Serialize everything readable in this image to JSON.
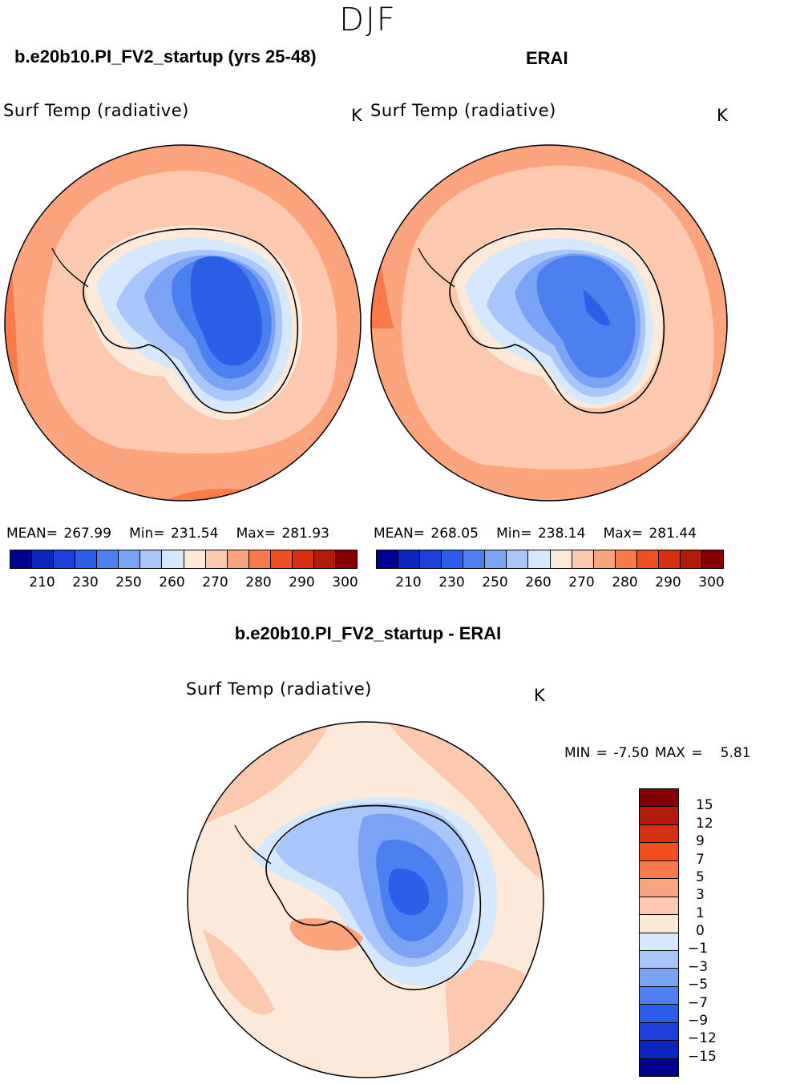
{
  "season": "DJF",
  "colors": {
    "abs_scale": [
      "#00008f",
      "#0c26bd",
      "#1c40d9",
      "#2d5fe6",
      "#4d7ff0",
      "#7aa2f5",
      "#a9c6fa",
      "#d6e8fb",
      "#fde9d9",
      "#fcc9ae",
      "#fca47d",
      "#fa7a4c",
      "#f0501f",
      "#d63212",
      "#b01c08",
      "#850000"
    ],
    "diff_scale": [
      "#850000",
      "#b01c08",
      "#d63212",
      "#f0501f",
      "#fa7a4c",
      "#fca47d",
      "#fcc9ae",
      "#fde9d9",
      "#d6e8fb",
      "#a9c6fa",
      "#7aa2f5",
      "#4d7ff0",
      "#2d5fe6",
      "#1c40d9",
      "#0c26bd",
      "#00008f"
    ]
  },
  "panels": [
    {
      "case_title": "b.e20b10.PI_FV2_startup (yrs 25-48)",
      "variable": "Surf Temp (radiative)",
      "units": "K",
      "mean_label": "MEAN=",
      "mean": "267.99",
      "min_label": "Min=",
      "min": "231.54",
      "max_label": "Max=",
      "max": "281.93",
      "ticks": [
        "210",
        "230",
        "250",
        "260",
        "270",
        "280",
        "290",
        "300"
      ]
    },
    {
      "case_title": "ERAI",
      "variable": "Surf Temp (radiative)",
      "units": "K",
      "mean_label": "MEAN=",
      "mean": "268.05",
      "min_label": "Min=",
      "min": "238.14",
      "max_label": "Max=",
      "max": "281.44",
      "ticks": [
        "210",
        "230",
        "250",
        "260",
        "270",
        "280",
        "290",
        "300"
      ]
    }
  ],
  "diff": {
    "title": "b.e20b10.PI_FV2_startup - ERAI",
    "variable": "Surf Temp (radiative)",
    "units": "K",
    "min_label": "MIN =",
    "min": "-7.50",
    "max_label": "MAX =",
    "max": "5.81",
    "ticks": [
      "15",
      "12",
      "9",
      "7",
      "5",
      "3",
      "1",
      "0",
      "−1",
      "−3",
      "−5",
      "−7",
      "−9",
      "−12",
      "−15"
    ]
  }
}
